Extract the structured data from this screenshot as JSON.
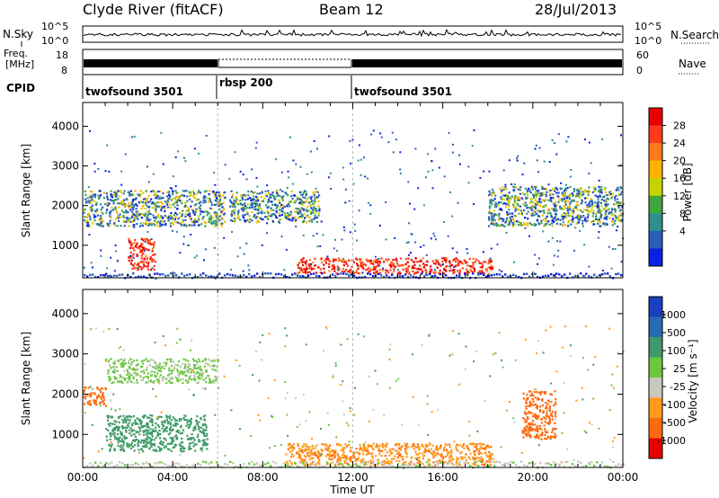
{
  "header": {
    "station": "Clyde River (fitACF)",
    "beam": "Beam 12",
    "date": "28/Jul/2013"
  },
  "strips": {
    "nsky": {
      "label": "N.Sky",
      "tick_top": "10^5",
      "tick_bottom": "10^0",
      "right_label": "N.Search",
      "right_tick_top": "10^5",
      "right_tick_bottom": "10^0"
    },
    "freq": {
      "label_line1": "Freq.",
      "label_line2": "[MHz]",
      "tick_top": "18",
      "tick_bottom": "8",
      "right_label": "Nave",
      "right_tick_top": "60",
      "right_tick_bottom": "0"
    },
    "cpid": {
      "label": "CPID",
      "segments": [
        {
          "name": "twofsound 3501",
          "start_hour": 0,
          "end_hour": 6
        },
        {
          "name": "rbsp 200",
          "start_hour": 6,
          "end_hour": 12
        },
        {
          "name": "twofsound 3501",
          "start_hour": 12,
          "end_hour": 24
        }
      ]
    }
  },
  "power_colorbar": {
    "label": "Power [dB]",
    "ticks": [
      "28",
      "24",
      "20",
      "16",
      "12",
      "8",
      "4"
    ],
    "colors": [
      "#e60000",
      "#ff3a1a",
      "#ff7a1a",
      "#ffb200",
      "#c8d200",
      "#3fa63f",
      "#2f8f8f",
      "#2a5fb8",
      "#0d1fe0"
    ]
  },
  "velocity_colorbar": {
    "label": "Velocity [m s⁻¹]",
    "ticks": [
      "1000",
      "500",
      "100",
      "25",
      "-25",
      "-100",
      "-500",
      "-1000"
    ],
    "colors": [
      "#1a3fc0",
      "#2a6ab0",
      "#3f9a6a",
      "#6ac83f",
      "#c8c8c0",
      "#ff9a1a",
      "#ff6a10",
      "#e60000"
    ]
  },
  "chart_data": {
    "type": "heatmap",
    "xlabel": "Time UT",
    "ylabel": "Slant Range [km]",
    "x_ticks": [
      "00:00",
      "04:00",
      "08:00",
      "12:00",
      "16:00",
      "20:00",
      "00:00"
    ],
    "x_range_hours": [
      0,
      24
    ],
    "y_ticks": [
      1000,
      2000,
      3000,
      4000
    ],
    "y_range_km": [
      180,
      4600
    ],
    "power_regions": [
      {
        "t0": 0.0,
        "t1": 6.3,
        "r0": 1500,
        "r1": 2400,
        "level": "mixed"
      },
      {
        "t0": 2.0,
        "t1": 3.2,
        "r0": 400,
        "r1": 1200,
        "level": "high"
      },
      {
        "t0": 6.5,
        "t1": 10.5,
        "r0": 1600,
        "r1": 2400,
        "level": "mixed"
      },
      {
        "t0": 9.5,
        "t1": 18.2,
        "r0": 300,
        "r1": 700,
        "level": "high"
      },
      {
        "t0": 18.0,
        "t1": 24.0,
        "r0": 1500,
        "r1": 2500,
        "level": "mixed"
      }
    ],
    "velocity_regions": [
      {
        "t0": 0.0,
        "t1": 1.0,
        "r0": 1700,
        "r1": 2200,
        "velocity": "-500"
      },
      {
        "t0": 1.0,
        "t1": 6.0,
        "r0": 2300,
        "r1": 2900,
        "velocity": "25"
      },
      {
        "t0": 1.0,
        "t1": 5.5,
        "r0": 600,
        "r1": 1500,
        "velocity": "100"
      },
      {
        "t0": 9.0,
        "t1": 18.2,
        "r0": 250,
        "r1": 800,
        "velocity": "-100"
      },
      {
        "t0": 19.5,
        "t1": 21.0,
        "r0": 900,
        "r1": 2100,
        "velocity": "-500"
      }
    ]
  }
}
